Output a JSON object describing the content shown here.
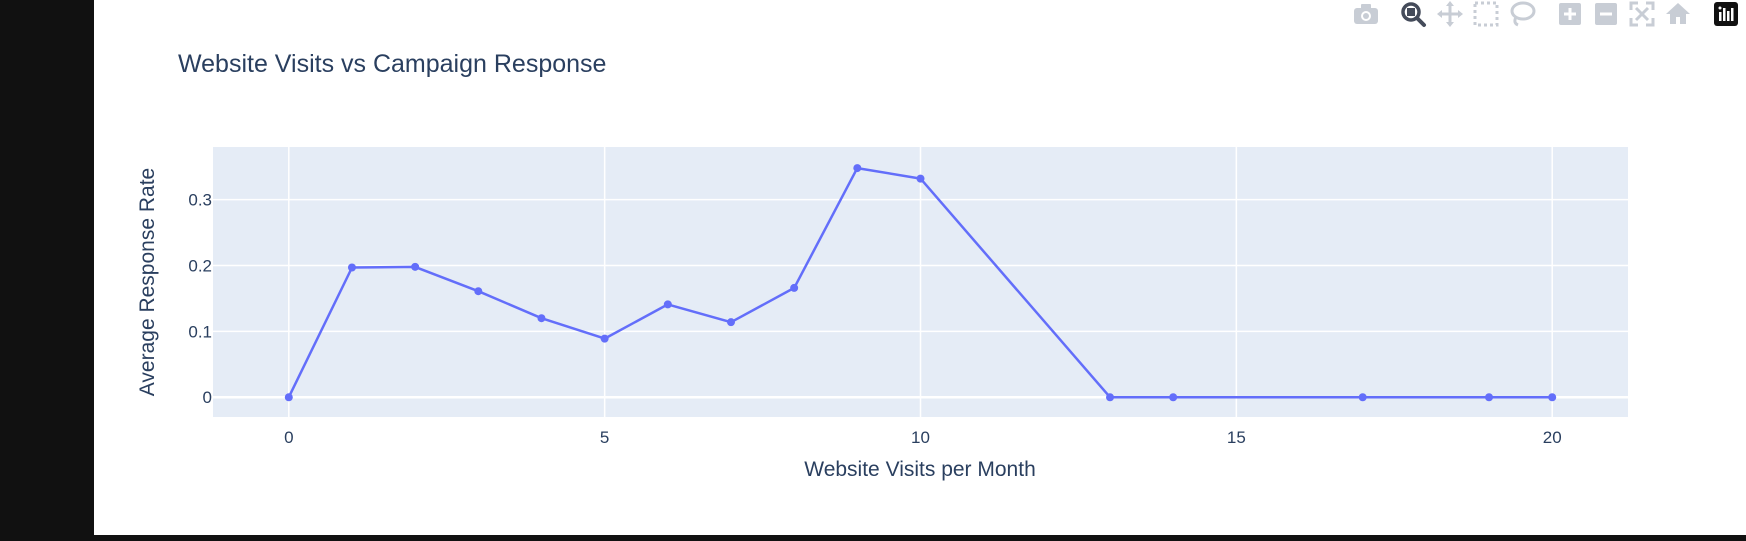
{
  "modebar": {
    "buttons": [
      {
        "name": "camera-icon",
        "title": "Download plot as a png"
      },
      {
        "name": "zoom-icon",
        "title": "Zoom"
      },
      {
        "name": "pan-icon",
        "title": "Pan"
      },
      {
        "name": "box-select-icon",
        "title": "Box Select"
      },
      {
        "name": "lasso-select-icon",
        "title": "Lasso Select"
      },
      {
        "name": "zoom-in-icon",
        "title": "Zoom in"
      },
      {
        "name": "zoom-out-icon",
        "title": "Zoom out"
      },
      {
        "name": "autoscale-icon",
        "title": "Autoscale"
      },
      {
        "name": "reset-axes-icon",
        "title": "Reset axes"
      },
      {
        "name": "plotly-logo-icon",
        "title": "Produced with Plotly"
      }
    ],
    "active": "zoom-icon"
  },
  "chart_data": {
    "type": "line",
    "mode": "lines+markers",
    "title": "Website Visits vs Campaign Response",
    "xlabel": "Website Visits per Month",
    "ylabel": "Average Response Rate",
    "xlim": [
      -1.2,
      21.2
    ],
    "ylim": [
      -0.03,
      0.38
    ],
    "xticks": [
      0,
      5,
      10,
      15,
      20
    ],
    "xtick_labels": [
      "0",
      "5",
      "10",
      "15",
      "20"
    ],
    "yticks": [
      0,
      0.1,
      0.2,
      0.3
    ],
    "ytick_labels": [
      "0",
      "0.1",
      "0.2",
      "0.3"
    ],
    "grid": true,
    "series": [
      {
        "color": "#636efa",
        "x": [
          0,
          1,
          2,
          3,
          4,
          5,
          6,
          7,
          8,
          9,
          10,
          13,
          14,
          17,
          19,
          20
        ],
        "y": [
          0,
          0.197,
          0.198,
          0.161,
          0.12,
          0.089,
          0.141,
          0.114,
          0.166,
          0.348,
          0.332,
          0,
          0,
          0,
          0,
          0
        ]
      }
    ]
  }
}
